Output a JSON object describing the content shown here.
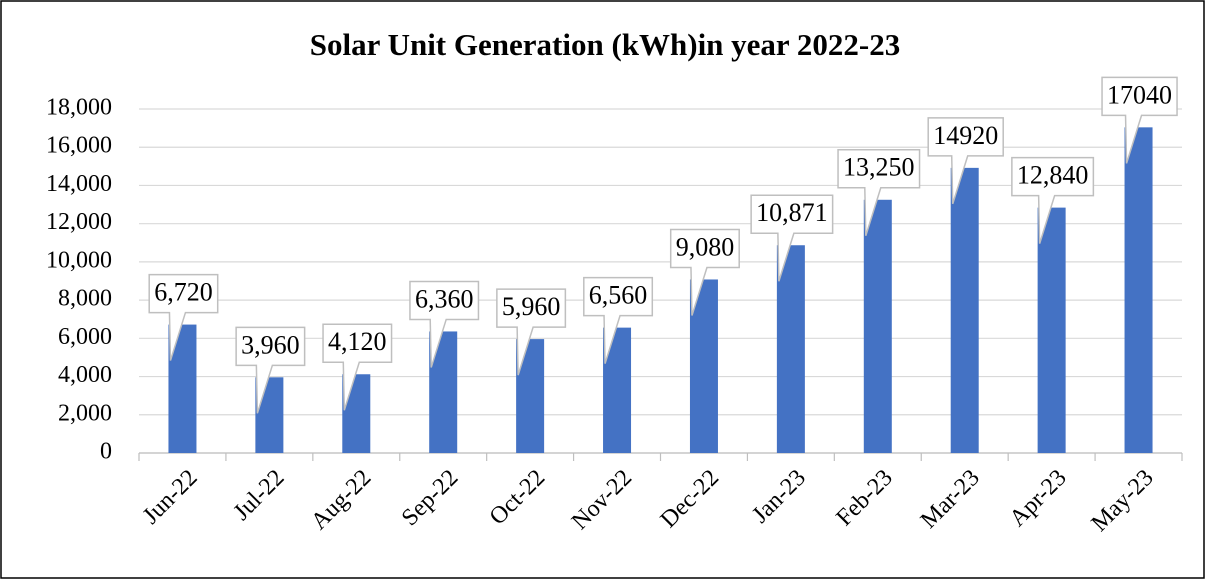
{
  "chart_data": {
    "type": "bar",
    "title": "Solar Unit Generation (kWh)in year 2022-23",
    "categories": [
      "Jun-22",
      "Jul-22",
      "Aug-22",
      "Sep-22",
      "Oct-22",
      "Nov-22",
      "Dec-22",
      "Jan-23",
      "Feb-23",
      "Mar-23",
      "Apr-23",
      "May-23"
    ],
    "values": [
      6720,
      3960,
      4120,
      6360,
      5960,
      6560,
      9080,
      10871,
      13250,
      14920,
      12840,
      17040
    ],
    "value_labels": [
      "6,720",
      "3,960",
      "4,120",
      "6,360",
      "5,960",
      "6,560",
      "9,080",
      "10,871",
      "13,250",
      "14920",
      "12,840",
      "17040"
    ],
    "color": "#4472c4",
    "ylim": [
      0,
      18000
    ],
    "yticks": [
      0,
      {
        "value": 2000,
        "label": "2,000"
      },
      {
        "value": 4000,
        "label": "4,000"
      },
      {
        "value": 6000,
        "label": "6,000"
      },
      {
        "value": 8000,
        "label": "8,000"
      },
      {
        "value": 10000,
        "label": "10,000"
      },
      {
        "value": 12000,
        "label": "12,000"
      },
      {
        "value": 14000,
        "label": "14,000"
      },
      {
        "value": 16000,
        "label": "16,000"
      },
      {
        "value": 18000,
        "label": "18,000"
      }
    ],
    "grid": true
  }
}
